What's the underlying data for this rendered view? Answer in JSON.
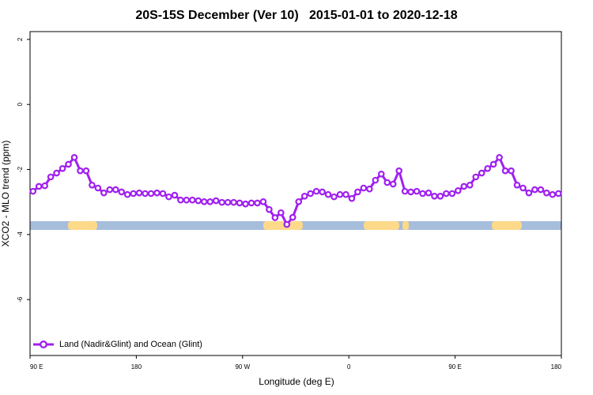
{
  "chart_data": {
    "type": "line",
    "title": "20S-15S December (Ver 10)   2015-01-01 to 2020-12-18",
    "x_label": "Longitude (deg E)",
    "y_label": "XCO2 - MLO trend (ppm)",
    "x": [
      92.5,
      97.5,
      102.5,
      107.5,
      112.5,
      117.5,
      122.5,
      127.5,
      132.5,
      137.5,
      142.5,
      147.5,
      152.5,
      157.5,
      162.5,
      167.5,
      172.5,
      177.5,
      182.5,
      187.5,
      192.5,
      197.5,
      202.5,
      207.5,
      212.5,
      217.5,
      222.5,
      227.5,
      232.5,
      237.5,
      242.5,
      247.5,
      252.5,
      257.5,
      262.5,
      267.5,
      272.5,
      277.5,
      282.5,
      287.5,
      292.5,
      297.5,
      302.5,
      307.5,
      312.5,
      317.5,
      322.5,
      327.5,
      332.5,
      337.5,
      342.5,
      347.5,
      352.5,
      357.5,
      362.5,
      367.5,
      372.5,
      377.5,
      382.5,
      387.5,
      392.5,
      397.5,
      402.5,
      407.5,
      412.5,
      417.5,
      422.5,
      427.5,
      432.5,
      437.5,
      442.5,
      447.5,
      452.5,
      457.5,
      462.5,
      467.5,
      472.5,
      477.5,
      482.5,
      487.5,
      492.5,
      497.5,
      502.5,
      507.5,
      512.5,
      517.5,
      522.5,
      527.5,
      532.5,
      537.5
    ],
    "series": [
      {
        "name": "Land (Nadir&Glint) and Ocean (Glint)",
        "color": "#a020f0",
        "values": [
          -2.67,
          -2.52,
          -2.5,
          -2.23,
          -2.11,
          -1.97,
          -1.84,
          -1.63,
          -2.04,
          -2.04,
          -2.48,
          -2.57,
          -2.72,
          -2.62,
          -2.62,
          -2.69,
          -2.77,
          -2.74,
          -2.72,
          -2.74,
          -2.74,
          -2.72,
          -2.74,
          -2.84,
          -2.79,
          -2.94,
          -2.94,
          -2.94,
          -2.96,
          -2.99,
          -2.99,
          -2.96,
          -3.01,
          -3.01,
          -3.01,
          -3.03,
          -3.06,
          -3.03,
          -3.03,
          -2.99,
          -3.23,
          -3.48,
          -3.33,
          -3.69,
          -3.47,
          -2.99,
          -2.82,
          -2.74,
          -2.67,
          -2.69,
          -2.77,
          -2.84,
          -2.77,
          -2.77,
          -2.89,
          -2.69,
          -2.57,
          -2.6,
          -2.33,
          -2.14,
          -2.4,
          -2.45,
          -2.04,
          -2.67,
          -2.69,
          -2.67,
          -2.74,
          -2.72,
          -2.82,
          -2.82,
          -2.74,
          -2.74,
          -2.65,
          -2.52,
          -2.48,
          -2.23,
          -2.11,
          -1.97,
          -1.84,
          -1.63,
          -2.04,
          -2.04,
          -2.48,
          -2.57,
          -2.72,
          -2.62,
          -2.62,
          -2.72,
          -2.77,
          -2.74
        ]
      }
    ],
    "xlim": [
      90,
      540
    ],
    "xticks": [
      {
        "value": 90,
        "label": "90 E"
      },
      180,
      {
        "value": 270,
        "label": "90 W"
      },
      {
        "value": 360,
        "label": "0"
      },
      {
        "value": 450,
        "label": "90 E"
      },
      {
        "value": 540,
        "label": "180"
      }
    ],
    "ylim": [
      -7.72,
      2.24
    ],
    "yticks": [
      2,
      0,
      -2,
      -4,
      -6
    ],
    "legend": "bottom-left"
  }
}
